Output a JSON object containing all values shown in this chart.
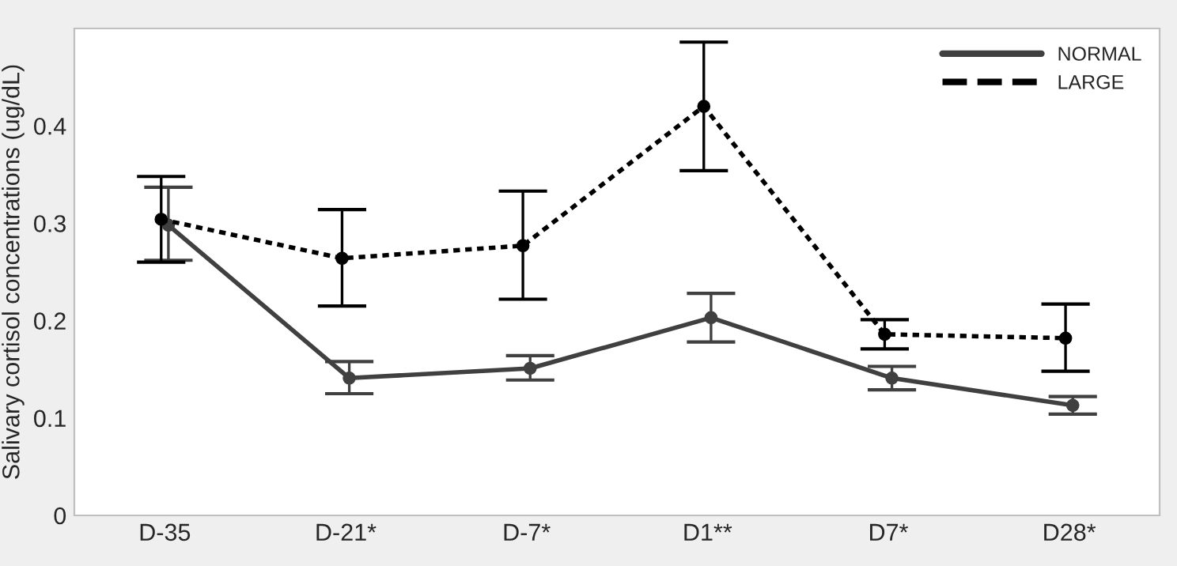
{
  "chart_data": {
    "type": "line",
    "ylabel": "Salivary cortisol concentrations (ug/dL)",
    "categories": [
      "D-35",
      "D-21*",
      "D-7*",
      "D1**",
      "D7*",
      "D28*"
    ],
    "series": [
      {
        "name": "NORMAL",
        "color": "#404040",
        "line_style": "solid",
        "values": [
          0.298,
          0.141,
          0.151,
          0.203,
          0.141,
          0.113
        ],
        "errors": [
          [
            0.262,
            0.337
          ],
          [
            0.125,
            0.158
          ],
          [
            0.139,
            0.164
          ],
          [
            0.178,
            0.228
          ],
          [
            0.129,
            0.153
          ],
          [
            0.104,
            0.122
          ]
        ]
      },
      {
        "name": "LARGE",
        "color": "#000000",
        "line_style": "dotted",
        "values": [
          0.304,
          0.264,
          0.277,
          0.42,
          0.186,
          0.182
        ],
        "errors": [
          [
            0.26,
            0.348
          ],
          [
            0.215,
            0.314
          ],
          [
            0.222,
            0.333
          ],
          [
            0.354,
            0.486
          ],
          [
            0.171,
            0.201
          ],
          [
            0.148,
            0.217
          ]
        ]
      }
    ],
    "ylim": [
      0,
      0.5
    ],
    "yticks": [
      0,
      0.1,
      0.2,
      0.3,
      0.4
    ],
    "marker": "circle",
    "grid": false,
    "legend": "top right"
  }
}
